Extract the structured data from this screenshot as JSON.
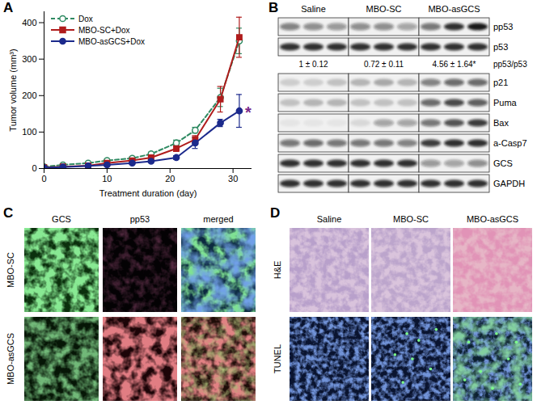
{
  "chart_data": {
    "type": "line",
    "x_label": "Treatment duration (day)",
    "y_label": "Tumor volume (mm³)",
    "x": [
      0,
      3,
      7,
      10,
      14,
      17,
      21,
      24,
      28,
      31
    ],
    "xlim": [
      0,
      33
    ],
    "xticks": [
      0,
      10,
      20,
      30
    ],
    "ylim": [
      0,
      430
    ],
    "yticks": [
      0,
      100,
      200,
      300,
      400
    ],
    "legend": "top-left",
    "series": [
      {
        "name": "Dox",
        "color": "#2f8a62",
        "marker": "circle-open",
        "line_style": "dashed",
        "values": [
          5,
          10,
          15,
          22,
          28,
          40,
          70,
          105,
          195,
          350
        ],
        "errors": [
          1,
          2,
          3,
          3,
          4,
          5,
          8,
          8,
          25,
          35
        ]
      },
      {
        "name": "MBO-SC+Dox",
        "color": "#b01c1c",
        "marker": "square",
        "line_style": "solid",
        "values": [
          3,
          5,
          8,
          15,
          22,
          30,
          55,
          80,
          190,
          360
        ],
        "errors": [
          1,
          1,
          2,
          3,
          4,
          5,
          8,
          10,
          35,
          55
        ]
      },
      {
        "name": "MBO-asGCS+Dox",
        "color": "#1c2a8c",
        "marker": "circle",
        "line_style": "solid",
        "values": [
          2,
          4,
          7,
          10,
          15,
          20,
          30,
          70,
          125,
          158
        ],
        "errors": [
          1,
          1,
          2,
          2,
          3,
          4,
          5,
          15,
          10,
          45
        ]
      }
    ],
    "annotations": [
      {
        "text": "*",
        "series": "MBO-asGCS+Dox",
        "color": "#7b2a8a"
      }
    ]
  },
  "figure": {
    "panel_labels": [
      "A",
      "B",
      "C",
      "D"
    ],
    "panel_b": {
      "groups": [
        "Saline",
        "MBO-SC",
        "MBO-asGCS"
      ],
      "rows": [
        {
          "label": "pp53",
          "bands": [
            0.5,
            0.45,
            0.4,
            0.45,
            0.45,
            0.35,
            0.55,
            0.85,
            0.95
          ]
        },
        {
          "label": "p53",
          "bands": [
            0.85,
            0.85,
            0.85,
            0.85,
            0.85,
            0.85,
            0.85,
            0.85,
            0.85
          ]
        },
        {
          "label": "pp53/p53",
          "texts": [
            "1 ± 0.12",
            "0.72 ± 0.11",
            "4.56 ± 1.64*"
          ]
        },
        {
          "label": "p21",
          "bands": [
            0.15,
            0.15,
            0.2,
            0.25,
            0.3,
            0.25,
            0.5,
            0.6,
            0.6
          ]
        },
        {
          "label": "Puma",
          "bands": [
            0.2,
            0.25,
            0.25,
            0.2,
            0.2,
            0.2,
            0.6,
            0.75,
            0.65
          ]
        },
        {
          "label": "Bax",
          "bands": [
            0.05,
            0.05,
            0.05,
            0.1,
            0.35,
            0.35,
            0.55,
            0.7,
            0.8
          ]
        },
        {
          "label": "a-Casp7",
          "bands": [
            0.55,
            0.6,
            0.55,
            0.55,
            0.55,
            0.5,
            0.8,
            0.85,
            0.85
          ]
        },
        {
          "label": "GCS",
          "bands": [
            0.85,
            0.85,
            0.85,
            0.85,
            0.85,
            0.85,
            0.4,
            0.35,
            0.45
          ]
        },
        {
          "label": "GAPDH",
          "bands": [
            0.85,
            0.85,
            0.85,
            0.85,
            0.85,
            0.85,
            0.85,
            0.85,
            0.85
          ]
        }
      ]
    },
    "panel_c": {
      "columns": [
        "GCS",
        "pp53",
        "merged"
      ],
      "rows": [
        "MBO-SC",
        "MBO-asGCS"
      ]
    },
    "panel_d": {
      "columns": [
        "Saline",
        "MBO-SC",
        "MBO-asGCS"
      ],
      "rows": [
        "H&E",
        "TUNEL"
      ]
    }
  }
}
